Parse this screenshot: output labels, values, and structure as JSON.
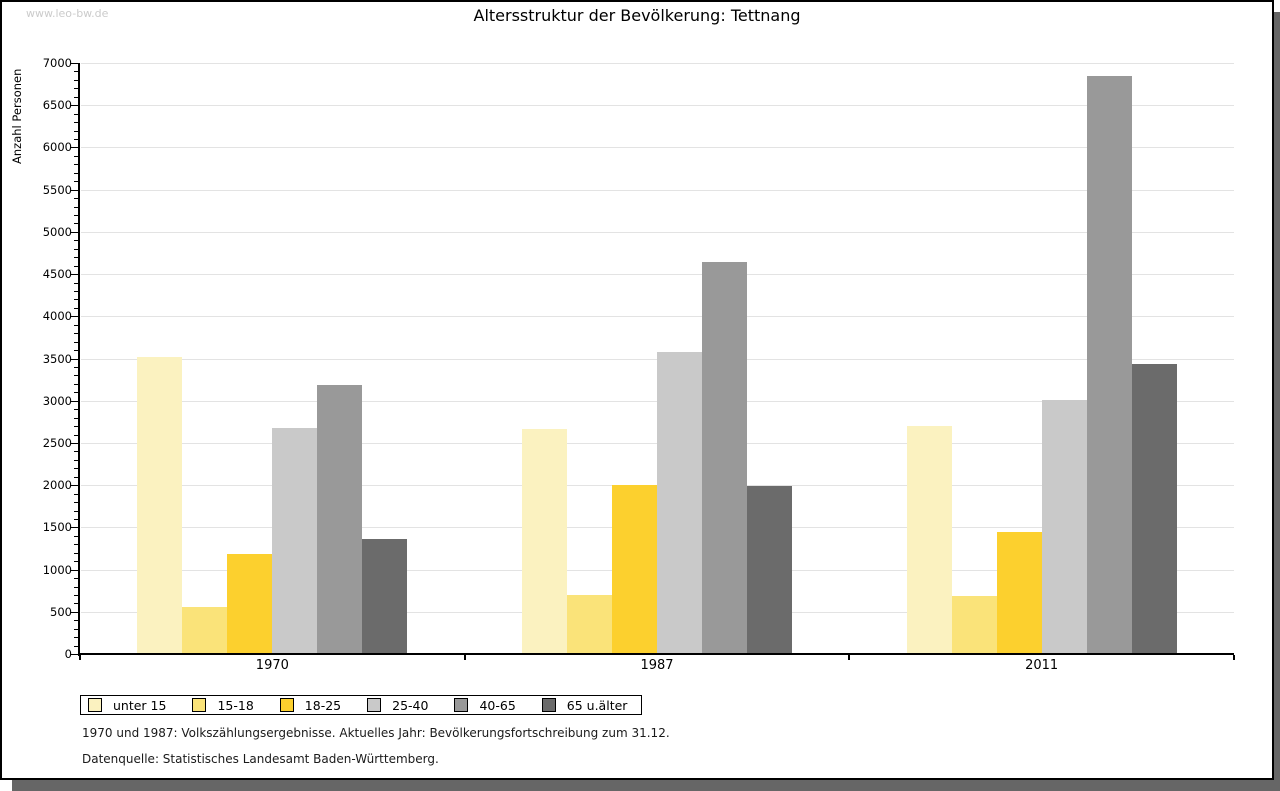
{
  "watermark": "www.leo-bw.de",
  "title": "Altersstruktur der Bevölkerung: Tettnang",
  "footer": {
    "line1": "1970 und 1987: Volkszählungsergebnisse. Aktuelles Jahr: Bevölkerungsfortschreibung zum 31.12.",
    "line2": "Datenquelle: Statistisches Landesamt Baden-Württemberg."
  },
  "chart_data": {
    "type": "bar",
    "title": "Altersstruktur der Bevölkerung: Tettnang",
    "ylabel": "Anzahl Personen",
    "xlabel": "",
    "ylim": [
      0,
      7000
    ],
    "ytick_step": 500,
    "minor_tick_step": 100,
    "grid": true,
    "legend_position": "bottom-left",
    "categories": [
      "1970",
      "1987",
      "2011"
    ],
    "series": [
      {
        "name": "unter 15",
        "color": "#FBF2C0",
        "values": [
          3520,
          2660,
          2700
        ]
      },
      {
        "name": "15-18",
        "color": "#FAE379",
        "values": [
          560,
          700,
          690
        ]
      },
      {
        "name": "18-25",
        "color": "#FCD02E",
        "values": [
          1190,
          2000,
          1440
        ]
      },
      {
        "name": "25-40",
        "color": "#C9C9C9",
        "values": [
          2680,
          3580,
          3010
        ]
      },
      {
        "name": "40-65",
        "color": "#999999",
        "values": [
          3190,
          4640,
          6850
        ]
      },
      {
        "name": "65 u.älter",
        "color": "#6B6B6B",
        "values": [
          1360,
          1990,
          3440
        ]
      }
    ]
  }
}
